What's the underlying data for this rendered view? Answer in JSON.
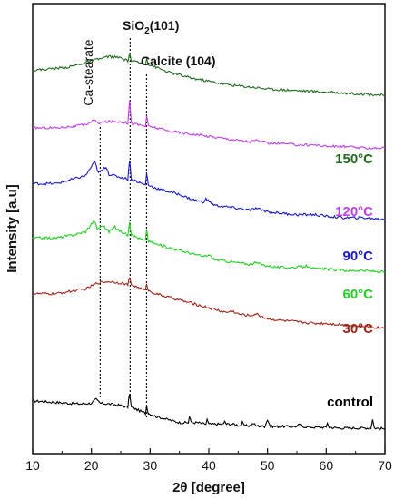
{
  "chart_data": {
    "type": "line",
    "xlabel": "2θ [degree]",
    "ylabel": "Intensity [a.u]",
    "xlim": [
      10,
      70
    ],
    "xticks": [
      10,
      20,
      30,
      40,
      50,
      60,
      70
    ],
    "grid": false,
    "y_ticks_shown": false,
    "annotations": [
      {
        "text": "Ca-stearate",
        "x": 21.5,
        "orientation": "vertical"
      },
      {
        "text": "SiO",
        "sub": "2",
        "suffix": "(101)",
        "x": 26.6
      },
      {
        "text": "Calcite (104)",
        "x": 29.4
      }
    ],
    "series": [
      {
        "name": "control",
        "color": "#000000",
        "points": [
          [
            10,
            94
          ],
          [
            14,
            93
          ],
          [
            18,
            92
          ],
          [
            20,
            92.5
          ],
          [
            20.8,
            95
          ],
          [
            21.5,
            92.5
          ],
          [
            23,
            92
          ],
          [
            25,
            91
          ],
          [
            26.2,
            90
          ],
          [
            26.5,
            99
          ],
          [
            26.8,
            90
          ],
          [
            28,
            88
          ],
          [
            29.2,
            86
          ],
          [
            29.4,
            91
          ],
          [
            29.7,
            86
          ],
          [
            31,
            84
          ],
          [
            33,
            82
          ],
          [
            35,
            80
          ],
          [
            36.5,
            80
          ],
          [
            36.7,
            84
          ],
          [
            37,
            80
          ],
          [
            38,
            80
          ],
          [
            39.5,
            79
          ],
          [
            39.7,
            82
          ],
          [
            40,
            79
          ],
          [
            41,
            79
          ],
          [
            42.5,
            79
          ],
          [
            42.7,
            81
          ],
          [
            43,
            79
          ],
          [
            44,
            79
          ],
          [
            45.5,
            78
          ],
          [
            45.7,
            80
          ],
          [
            46,
            78
          ],
          [
            47,
            78
          ],
          [
            47.6,
            79.5
          ],
          [
            48,
            78
          ],
          [
            49.5,
            77.5
          ],
          [
            50,
            82
          ],
          [
            50.5,
            77.5
          ],
          [
            52,
            77.5
          ],
          [
            55,
            77.5
          ],
          [
            55.5,
            79
          ],
          [
            56,
            77.5
          ],
          [
            58,
            77
          ],
          [
            60,
            77
          ],
          [
            60.2,
            80
          ],
          [
            60.5,
            77
          ],
          [
            62,
            76.5
          ],
          [
            64,
            76.5
          ],
          [
            66,
            76.5
          ],
          [
            67.6,
            76.5
          ],
          [
            67.9,
            82
          ],
          [
            68.2,
            76.5
          ],
          [
            70,
            76
          ]
        ]
      },
      {
        "name": "30°C",
        "color": "#a0261a",
        "points": [
          [
            10,
            163
          ],
          [
            14,
            163
          ],
          [
            17,
            165
          ],
          [
            19,
            166
          ],
          [
            21,
            170
          ],
          [
            23,
            171
          ],
          [
            25,
            170
          ],
          [
            26.2,
            169
          ],
          [
            26.5,
            173
          ],
          [
            26.8,
            169
          ],
          [
            28,
            167
          ],
          [
            29.2,
            165
          ],
          [
            29.4,
            170
          ],
          [
            29.7,
            165
          ],
          [
            31,
            163
          ],
          [
            33,
            161
          ],
          [
            35,
            159
          ],
          [
            37,
            157
          ],
          [
            39,
            155
          ],
          [
            41,
            153
          ],
          [
            43,
            151
          ],
          [
            44,
            152
          ],
          [
            45,
            150
          ],
          [
            47,
            149
          ],
          [
            48,
            150
          ],
          [
            50,
            147
          ],
          [
            52,
            146
          ],
          [
            55,
            145
          ],
          [
            58,
            144
          ],
          [
            60,
            144
          ],
          [
            63,
            143
          ],
          [
            66,
            142
          ],
          [
            70,
            141
          ]
        ]
      },
      {
        "name": "60°C",
        "color": "#22d022",
        "points": [
          [
            10,
            199
          ],
          [
            14,
            199
          ],
          [
            17,
            201
          ],
          [
            19,
            203
          ],
          [
            20,
            208
          ],
          [
            20.5,
            210
          ],
          [
            21,
            205
          ],
          [
            22,
            207
          ],
          [
            23,
            203
          ],
          [
            24,
            206
          ],
          [
            25,
            203
          ],
          [
            26.2,
            201
          ],
          [
            26.5,
            210
          ],
          [
            26.8,
            201
          ],
          [
            28,
            199
          ],
          [
            29.2,
            197
          ],
          [
            29.4,
            205
          ],
          [
            29.7,
            197
          ],
          [
            31,
            195
          ],
          [
            33,
            193
          ],
          [
            35,
            191
          ],
          [
            37,
            189
          ],
          [
            39,
            187
          ],
          [
            40,
            188
          ],
          [
            41,
            185
          ],
          [
            43,
            184
          ],
          [
            45,
            183
          ],
          [
            47,
            182
          ],
          [
            48,
            183
          ],
          [
            50,
            181
          ],
          [
            52,
            180
          ],
          [
            55,
            180
          ],
          [
            57,
            181
          ],
          [
            58,
            179
          ],
          [
            60,
            179
          ],
          [
            63,
            178
          ],
          [
            66,
            178
          ],
          [
            70,
            177
          ]
        ]
      },
      {
        "name": "90°C",
        "color": "#1a1ac8",
        "points": [
          [
            10,
            234
          ],
          [
            14,
            234
          ],
          [
            17,
            237
          ],
          [
            19,
            239
          ],
          [
            20,
            245
          ],
          [
            20.6,
            248
          ],
          [
            21.2,
            241
          ],
          [
            22,
            243
          ],
          [
            22.5,
            245
          ],
          [
            23,
            240
          ],
          [
            24,
            239
          ],
          [
            25,
            238
          ],
          [
            26.2,
            237
          ],
          [
            26.5,
            249
          ],
          [
            26.8,
            237
          ],
          [
            28,
            235
          ],
          [
            29.2,
            233
          ],
          [
            29.4,
            241
          ],
          [
            29.7,
            233
          ],
          [
            31,
            231
          ],
          [
            33,
            229
          ],
          [
            35,
            227
          ],
          [
            37,
            224
          ],
          [
            39,
            222
          ],
          [
            39.5,
            224
          ],
          [
            41,
            220
          ],
          [
            43,
            219
          ],
          [
            45,
            218
          ],
          [
            47,
            217
          ],
          [
            48,
            218
          ],
          [
            50,
            216
          ],
          [
            52,
            215
          ],
          [
            55,
            214
          ],
          [
            58,
            214
          ],
          [
            60,
            213
          ],
          [
            63,
            212
          ],
          [
            66,
            212
          ],
          [
            70,
            211
          ]
        ]
      },
      {
        "name": "120°C",
        "color": "#c040e8",
        "points": [
          [
            10,
            270
          ],
          [
            14,
            270
          ],
          [
            17,
            271
          ],
          [
            19,
            272
          ],
          [
            20.5,
            275
          ],
          [
            21,
            273
          ],
          [
            23,
            274
          ],
          [
            25,
            274
          ],
          [
            26.2,
            273
          ],
          [
            26.5,
            288
          ],
          [
            26.8,
            273
          ],
          [
            28,
            272
          ],
          [
            29.2,
            271
          ],
          [
            29.4,
            278
          ],
          [
            29.7,
            271
          ],
          [
            31,
            270
          ],
          [
            33,
            268
          ],
          [
            35,
            267
          ],
          [
            37,
            266
          ],
          [
            39,
            265
          ],
          [
            41,
            264
          ],
          [
            43,
            263
          ],
          [
            45,
            262
          ],
          [
            47,
            261
          ],
          [
            48,
            262
          ],
          [
            50,
            260
          ],
          [
            52,
            260
          ],
          [
            55,
            259
          ],
          [
            58,
            259
          ],
          [
            60,
            258
          ],
          [
            63,
            258
          ],
          [
            66,
            257
          ],
          [
            70,
            257
          ]
        ]
      },
      {
        "name": "150°C",
        "color": "#1f6b1f",
        "points": [
          [
            10,
            307
          ],
          [
            13,
            308
          ],
          [
            16,
            309
          ],
          [
            19,
            312
          ],
          [
            21,
            314
          ],
          [
            23,
            316
          ],
          [
            25,
            315
          ],
          [
            26.2,
            313
          ],
          [
            26.5,
            318
          ],
          [
            26.8,
            313
          ],
          [
            28,
            312
          ],
          [
            29.2,
            311
          ],
          [
            29.4,
            315
          ],
          [
            29.7,
            311
          ],
          [
            31,
            309
          ],
          [
            33,
            306
          ],
          [
            35,
            304
          ],
          [
            37,
            302
          ],
          [
            40,
            300
          ],
          [
            43,
            298
          ],
          [
            45,
            297
          ],
          [
            48,
            296
          ],
          [
            50,
            295
          ],
          [
            55,
            294
          ],
          [
            60,
            293
          ],
          [
            65,
            292
          ],
          [
            70,
            291
          ]
        ]
      }
    ]
  }
}
